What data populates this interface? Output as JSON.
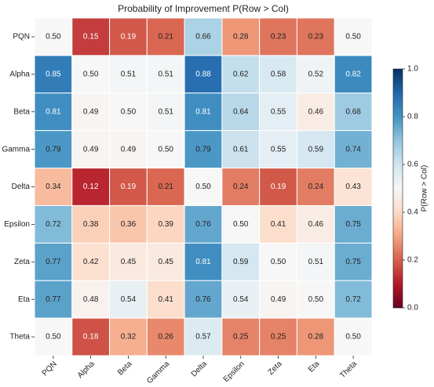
{
  "chart_data": {
    "type": "heatmap",
    "title": "Probability of Improvement P(Row > Col)",
    "x_categories": [
      "PQN",
      "Alpha",
      "Beta",
      "Gamma",
      "Delta",
      "Epsilon",
      "Zeta",
      "Eta",
      "Theta"
    ],
    "y_categories": [
      "PQN",
      "Alpha",
      "Beta",
      "Gamma",
      "Delta",
      "Epsilon",
      "Zeta",
      "Eta",
      "Theta"
    ],
    "values": [
      [
        0.5,
        0.15,
        0.19,
        0.21,
        0.66,
        0.28,
        0.23,
        0.23,
        0.5
      ],
      [
        0.85,
        0.5,
        0.51,
        0.51,
        0.88,
        0.62,
        0.58,
        0.52,
        0.82
      ],
      [
        0.81,
        0.49,
        0.5,
        0.51,
        0.81,
        0.64,
        0.55,
        0.46,
        0.68
      ],
      [
        0.79,
        0.49,
        0.49,
        0.5,
        0.79,
        0.61,
        0.55,
        0.59,
        0.74
      ],
      [
        0.34,
        0.12,
        0.19,
        0.21,
        0.5,
        0.24,
        0.19,
        0.24,
        0.43
      ],
      [
        0.72,
        0.38,
        0.36,
        0.39,
        0.76,
        0.5,
        0.41,
        0.46,
        0.75
      ],
      [
        0.77,
        0.42,
        0.45,
        0.45,
        0.81,
        0.59,
        0.5,
        0.51,
        0.75
      ],
      [
        0.77,
        0.48,
        0.54,
        0.41,
        0.76,
        0.54,
        0.49,
        0.5,
        0.72
      ],
      [
        0.5,
        0.18,
        0.32,
        0.26,
        0.57,
        0.25,
        0.25,
        0.28,
        0.5
      ]
    ],
    "value_labels": [
      [
        "0.50",
        "0.15",
        "0.19",
        "0.21",
        "0.66",
        "0.28",
        "0.23",
        "0.23",
        "0.50"
      ],
      [
        "0.85",
        "0.50",
        "0.51",
        "0.51",
        "0.88",
        "0.62",
        "0.58",
        "0.52",
        "0.82"
      ],
      [
        "0.81",
        "0.49",
        "0.50",
        "0.51",
        "0.81",
        "0.64",
        "0.55",
        "0.46",
        "0.68"
      ],
      [
        "0.79",
        "0.49",
        "0.49",
        "0.50",
        "0.79",
        "0.61",
        "0.55",
        "0.59",
        "0.74"
      ],
      [
        "0.34",
        "0.12",
        "0.19",
        "0.21",
        "0.50",
        "0.24",
        "0.19",
        "0.24",
        "0.43"
      ],
      [
        "0.72",
        "0.38",
        "0.36",
        "0.39",
        "0.76",
        "0.50",
        "0.41",
        "0.46",
        "0.75"
      ],
      [
        "0.77",
        "0.42",
        "0.45",
        "0.45",
        "0.81",
        "0.59",
        "0.50",
        "0.51",
        "0.75"
      ],
      [
        "0.77",
        "0.48",
        "0.54",
        "0.41",
        "0.76",
        "0.54",
        "0.49",
        "0.50",
        "0.72"
      ],
      [
        "0.50",
        "0.18",
        "0.32",
        "0.26",
        "0.57",
        "0.25",
        "0.25",
        "0.28",
        "0.50"
      ]
    ],
    "zlim": [
      0,
      1
    ],
    "colorbar_ticks": [
      {
        "value": 0,
        "label": "0.0"
      },
      {
        "value": 0.2,
        "label": "0.2"
      },
      {
        "value": 0.4,
        "label": "0.4"
      },
      {
        "value": 0.6,
        "label": "0.6"
      },
      {
        "value": 0.8,
        "label": "0.8"
      },
      {
        "value": 1,
        "label": "1.0"
      }
    ],
    "colorbar_label": "P(Row > Col)",
    "colormap": [
      "#67001f",
      "#b2182b",
      "#d6604d",
      "#f4a582",
      "#fddbc7",
      "#f7f7f7",
      "#d1e5f0",
      "#92c5de",
      "#4393c3",
      "#2166ac",
      "#053061"
    ]
  }
}
